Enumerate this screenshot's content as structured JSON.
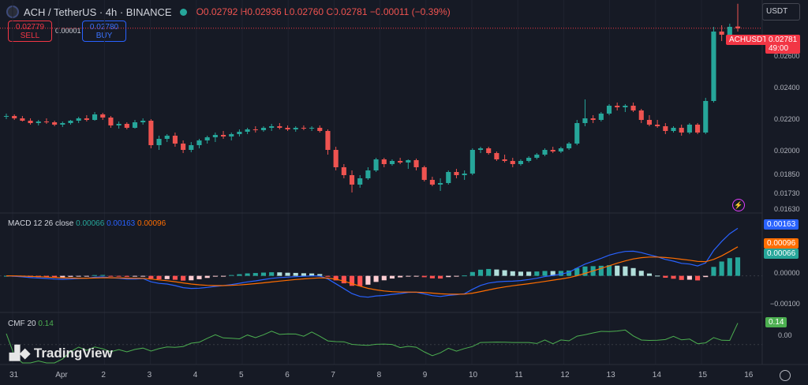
{
  "header": {
    "title": "ACH / TetherUS · 4h · BINANCE",
    "open": "O0.02792",
    "high": "H0.02936",
    "low": "L0.02760",
    "close": "C0.02781",
    "change": "−0.00011 (−0.39%)"
  },
  "trade": {
    "sell_price": "0.02779",
    "sell_label": "SELL",
    "spread": "0.00001",
    "buy_price": "0.02780",
    "buy_label": "BUY"
  },
  "currency_select": "USDT",
  "price_axis": {
    "ticks": [
      "0.02781",
      "0.02600",
      "0.02400",
      "0.02200",
      "0.02000",
      "0.01850",
      "0.01730",
      "0.01630"
    ],
    "symbol_tag": "ACHUSDT",
    "last_price": "0.02781",
    "countdown": "49:00"
  },
  "macd": {
    "label": "MACD 12 26 close",
    "v1": "0.00066",
    "v2": "0.00163",
    "v3": "0.00096",
    "axis_ticks": [
      "0.00000",
      "−0.00100"
    ],
    "tag_macd": "0.00163",
    "tag_signal": "0.00096",
    "tag_hist": "0.00066"
  },
  "cmf": {
    "label": "CMF 20",
    "value": "0.14",
    "axis_tick": "0.00",
    "tag": "0.14"
  },
  "time_axis": [
    "31",
    "Apr",
    "2",
    "3",
    "4",
    "5",
    "6",
    "7",
    "8",
    "9",
    "10",
    "11",
    "12",
    "13",
    "14",
    "15",
    "16"
  ],
  "watermark": "TradingView",
  "colors": {
    "up": "#26a69a",
    "down": "#ef5350",
    "macd": "#2962ff",
    "signal": "#ff6d00",
    "cmf": "#4caf50",
    "bg": "#161a25"
  },
  "chart_data": {
    "type": "candlestick",
    "interval": "4h",
    "candles": [
      [
        0.0222,
        0.0224,
        0.02205,
        0.02225
      ],
      [
        0.02225,
        0.02235,
        0.022,
        0.0221
      ],
      [
        0.0221,
        0.02225,
        0.0219,
        0.02195
      ],
      [
        0.02195,
        0.0221,
        0.0217,
        0.0218
      ],
      [
        0.0218,
        0.022,
        0.02165,
        0.0219
      ],
      [
        0.0219,
        0.0221,
        0.02175,
        0.02185
      ],
      [
        0.02185,
        0.02195,
        0.0216,
        0.0217
      ],
      [
        0.0217,
        0.0219,
        0.02155,
        0.0218
      ],
      [
        0.0218,
        0.022,
        0.0217,
        0.02195
      ],
      [
        0.02195,
        0.0222,
        0.0218,
        0.0221
      ],
      [
        0.0221,
        0.0223,
        0.0219,
        0.022
      ],
      [
        0.022,
        0.0225,
        0.02195,
        0.02235
      ],
      [
        0.02235,
        0.02245,
        0.022,
        0.02215
      ],
      [
        0.02215,
        0.02225,
        0.0215,
        0.02165
      ],
      [
        0.02165,
        0.0219,
        0.02145,
        0.02175
      ],
      [
        0.02175,
        0.02185,
        0.0214,
        0.0215
      ],
      [
        0.0215,
        0.022,
        0.02145,
        0.02185
      ],
      [
        0.02185,
        0.0221,
        0.0217,
        0.02195
      ],
      [
        0.02195,
        0.02205,
        0.0202,
        0.0204
      ],
      [
        0.0204,
        0.021,
        0.0201,
        0.0208
      ],
      [
        0.0208,
        0.0211,
        0.0206,
        0.021
      ],
      [
        0.021,
        0.0212,
        0.0203,
        0.0205
      ],
      [
        0.0205,
        0.0207,
        0.0199,
        0.0201
      ],
      [
        0.0201,
        0.0206,
        0.01995,
        0.0204
      ],
      [
        0.0204,
        0.0208,
        0.0202,
        0.0207
      ],
      [
        0.0207,
        0.021,
        0.0205,
        0.0209
      ],
      [
        0.0209,
        0.0212,
        0.0206,
        0.02105
      ],
      [
        0.02105,
        0.0213,
        0.0208,
        0.02095
      ],
      [
        0.02095,
        0.0212,
        0.0207,
        0.0211
      ],
      [
        0.0211,
        0.0214,
        0.02095,
        0.02125
      ],
      [
        0.02125,
        0.0215,
        0.0211,
        0.0214
      ],
      [
        0.0214,
        0.0216,
        0.0212,
        0.02135
      ],
      [
        0.02135,
        0.0216,
        0.02125,
        0.0215
      ],
      [
        0.0215,
        0.02175,
        0.0213,
        0.0216
      ],
      [
        0.0216,
        0.0218,
        0.0214,
        0.0215
      ],
      [
        0.0215,
        0.02165,
        0.0213,
        0.0214
      ],
      [
        0.0214,
        0.0216,
        0.02125,
        0.0215
      ],
      [
        0.0215,
        0.02165,
        0.02135,
        0.02145
      ],
      [
        0.02145,
        0.0216,
        0.0213,
        0.0215
      ],
      [
        0.0215,
        0.02165,
        0.0212,
        0.0213
      ],
      [
        0.0213,
        0.0214,
        0.0198,
        0.0201
      ],
      [
        0.0201,
        0.0203,
        0.0188,
        0.019
      ],
      [
        0.019,
        0.0192,
        0.0183,
        0.0185
      ],
      [
        0.0185,
        0.0188,
        0.0174,
        0.0179
      ],
      [
        0.0179,
        0.0185,
        0.0177,
        0.0183
      ],
      [
        0.0183,
        0.019,
        0.0182,
        0.0188
      ],
      [
        0.0188,
        0.0196,
        0.0187,
        0.0195
      ],
      [
        0.0195,
        0.0196,
        0.019,
        0.0192
      ],
      [
        0.0192,
        0.0195,
        0.0191,
        0.0194
      ],
      [
        0.0194,
        0.0196,
        0.0192,
        0.0193
      ],
      [
        0.0193,
        0.0195,
        0.0189,
        0.01945
      ],
      [
        0.01945,
        0.01955,
        0.0188,
        0.019
      ],
      [
        0.019,
        0.0191,
        0.0181,
        0.0182
      ],
      [
        0.0182,
        0.0184,
        0.0178,
        0.0179
      ],
      [
        0.0179,
        0.0183,
        0.0175,
        0.018
      ],
      [
        0.018,
        0.0188,
        0.0179,
        0.0187
      ],
      [
        0.0187,
        0.0189,
        0.0183,
        0.0185
      ],
      [
        0.0185,
        0.0188,
        0.0182,
        0.0186
      ],
      [
        0.0186,
        0.0202,
        0.0185,
        0.0201
      ],
      [
        0.0201,
        0.0203,
        0.0199,
        0.0202
      ],
      [
        0.0202,
        0.0203,
        0.0198,
        0.0199
      ],
      [
        0.0199,
        0.02,
        0.0194,
        0.0195
      ],
      [
        0.0195,
        0.0198,
        0.0193,
        0.0194
      ],
      [
        0.0194,
        0.0196,
        0.019,
        0.0192
      ],
      [
        0.0192,
        0.0195,
        0.0191,
        0.0194
      ],
      [
        0.0194,
        0.0197,
        0.0193,
        0.0196
      ],
      [
        0.0196,
        0.0199,
        0.0195,
        0.0198
      ],
      [
        0.0198,
        0.0202,
        0.0197,
        0.0201
      ],
      [
        0.0201,
        0.0203,
        0.0199,
        0.02
      ],
      [
        0.02,
        0.0203,
        0.0199,
        0.0202
      ],
      [
        0.0202,
        0.0206,
        0.0201,
        0.0205
      ],
      [
        0.0205,
        0.022,
        0.0204,
        0.0218
      ],
      [
        0.0218,
        0.0233,
        0.0216,
        0.0221
      ],
      [
        0.0221,
        0.0223,
        0.0218,
        0.022
      ],
      [
        0.022,
        0.0225,
        0.0219,
        0.0224
      ],
      [
        0.0224,
        0.023,
        0.0223,
        0.0229
      ],
      [
        0.0229,
        0.0231,
        0.0226,
        0.0228
      ],
      [
        0.0228,
        0.023,
        0.0225,
        0.0229
      ],
      [
        0.0229,
        0.0231,
        0.0225,
        0.0226
      ],
      [
        0.0226,
        0.0227,
        0.0218,
        0.022
      ],
      [
        0.022,
        0.0223,
        0.0216,
        0.0217
      ],
      [
        0.0217,
        0.022,
        0.0215,
        0.0216
      ],
      [
        0.0216,
        0.0218,
        0.0211,
        0.0213
      ],
      [
        0.0213,
        0.0216,
        0.0212,
        0.0215
      ],
      [
        0.0215,
        0.0217,
        0.021,
        0.0212
      ],
      [
        0.0212,
        0.0218,
        0.0211,
        0.0217
      ],
      [
        0.0217,
        0.0218,
        0.0211,
        0.0212
      ],
      [
        0.0212,
        0.0234,
        0.0211,
        0.0232
      ],
      [
        0.0232,
        0.0279,
        0.0231,
        0.0276
      ],
      [
        0.0276,
        0.028,
        0.027,
        0.0274
      ],
      [
        0.0274,
        0.0281,
        0.0272,
        0.0279
      ],
      [
        0.02792,
        0.02936,
        0.0276,
        0.02781
      ]
    ],
    "ylim": [
      0.0161,
      0.0296
    ],
    "indicators": {
      "macd": {
        "macd": 0.00163,
        "signal": 0.00096,
        "histogram": 0.00066,
        "ylim": [
          -0.0012,
          0.0021
        ]
      },
      "cmf": {
        "value": 0.14,
        "ylim": [
          -0.12,
          0.2
        ]
      }
    }
  }
}
